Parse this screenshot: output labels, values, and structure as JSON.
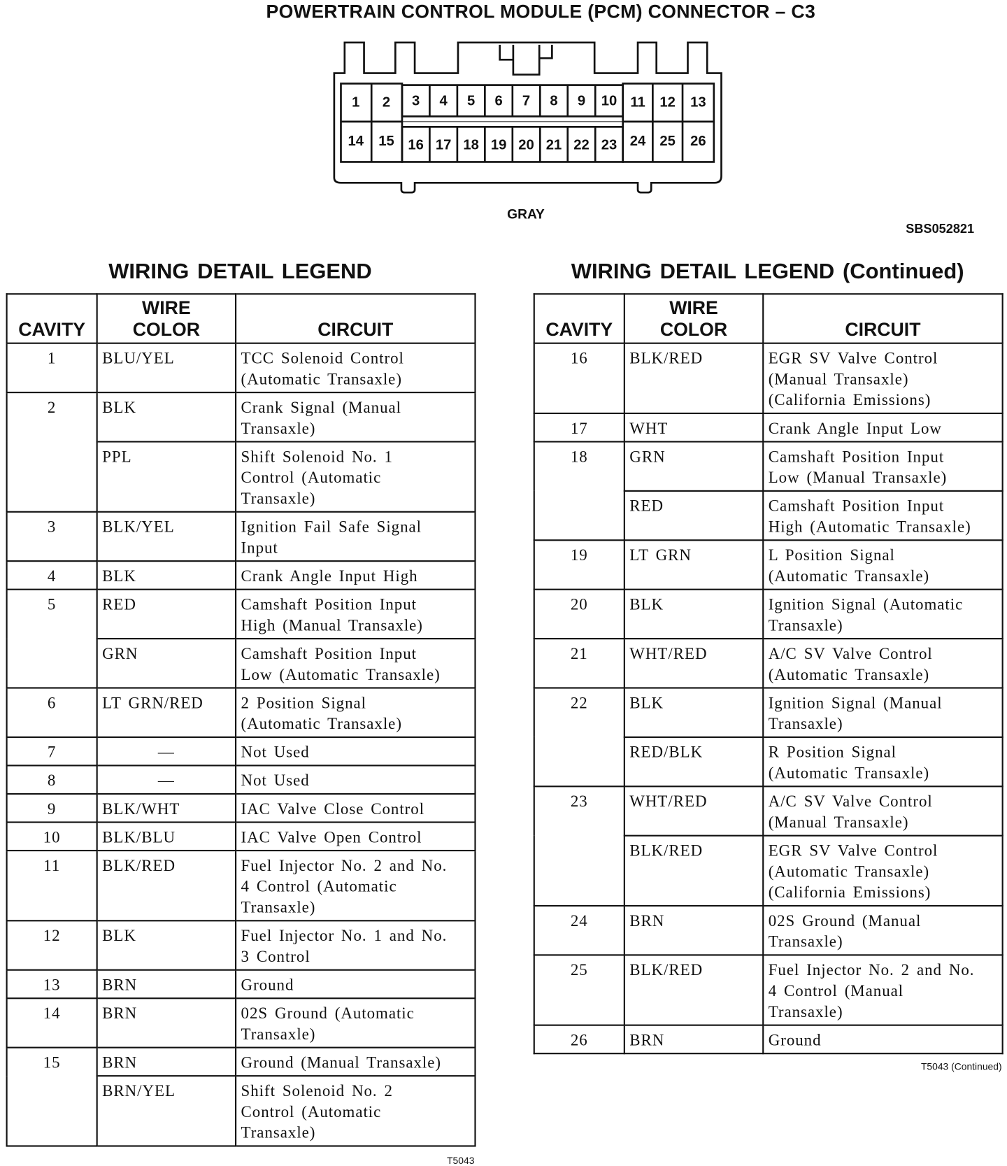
{
  "title": "POWERTRAIN CONTROL MODULE (PCM) CONNECTOR – C3",
  "connector": {
    "color_label": "GRAY",
    "figure_id": "SBS052821",
    "cavities": [
      "1",
      "2",
      "3",
      "4",
      "5",
      "6",
      "7",
      "8",
      "9",
      "10",
      "11",
      "12",
      "13",
      "14",
      "15",
      "16",
      "17",
      "18",
      "19",
      "20",
      "21",
      "22",
      "23",
      "24",
      "25",
      "26"
    ]
  },
  "headers": {
    "cavity": "CAVITY",
    "wire_color": "WIRE\nCOLOR",
    "circuit": "CIRCUIT"
  },
  "left_table": {
    "title": "WIRING DETAIL LEGEND",
    "footnote": "T5043",
    "rows": [
      {
        "cavity": "1",
        "entries": [
          {
            "color": "BLU/YEL",
            "circuit": "TCC Solenoid Control\n(Automatic Transaxle)"
          }
        ]
      },
      {
        "cavity": "2",
        "entries": [
          {
            "color": "BLK",
            "circuit": "Crank Signal (Manual\nTransaxle)"
          },
          {
            "color": "PPL",
            "circuit": "Shift Solenoid No. 1\nControl (Automatic\nTransaxle)"
          }
        ]
      },
      {
        "cavity": "3",
        "entries": [
          {
            "color": "BLK/YEL",
            "circuit": "Ignition Fail Safe Signal\nInput"
          }
        ]
      },
      {
        "cavity": "4",
        "entries": [
          {
            "color": "BLK",
            "circuit": "Crank Angle Input High"
          }
        ]
      },
      {
        "cavity": "5",
        "entries": [
          {
            "color": "RED",
            "circuit": "Camshaft Position Input\nHigh (Manual Transaxle)"
          },
          {
            "color": "GRN",
            "circuit": "Camshaft Position Input\nLow (Automatic Transaxle)"
          }
        ]
      },
      {
        "cavity": "6",
        "entries": [
          {
            "color": "LT GRN/RED",
            "circuit": "2 Position Signal\n(Automatic Transaxle)"
          }
        ]
      },
      {
        "cavity": "7",
        "entries": [
          {
            "color": "—",
            "circuit": "Not Used"
          }
        ]
      },
      {
        "cavity": "8",
        "entries": [
          {
            "color": "—",
            "circuit": "Not Used"
          }
        ]
      },
      {
        "cavity": "9",
        "entries": [
          {
            "color": "BLK/WHT",
            "circuit": "IAC Valve Close Control"
          }
        ]
      },
      {
        "cavity": "10",
        "entries": [
          {
            "color": "BLK/BLU",
            "circuit": "IAC Valve Open Control"
          }
        ]
      },
      {
        "cavity": "11",
        "entries": [
          {
            "color": "BLK/RED",
            "circuit": "Fuel Injector No. 2 and No.\n4 Control (Automatic\nTransaxle)"
          }
        ]
      },
      {
        "cavity": "12",
        "entries": [
          {
            "color": "BLK",
            "circuit": "Fuel Injector No. 1 and No.\n3 Control"
          }
        ]
      },
      {
        "cavity": "13",
        "entries": [
          {
            "color": "BRN",
            "circuit": "Ground"
          }
        ]
      },
      {
        "cavity": "14",
        "entries": [
          {
            "color": "BRN",
            "circuit": "02S Ground (Automatic\nTransaxle)"
          }
        ]
      },
      {
        "cavity": "15",
        "entries": [
          {
            "color": "BRN",
            "circuit": "Ground (Manual Transaxle)"
          },
          {
            "color": "BRN/YEL",
            "circuit": "Shift Solenoid No. 2\nControl (Automatic\nTransaxle)"
          }
        ]
      }
    ]
  },
  "right_table": {
    "title": "WIRING DETAIL LEGEND (Continued)",
    "footnote": "T5043 (Continued)",
    "rows": [
      {
        "cavity": "16",
        "entries": [
          {
            "color": "BLK/RED",
            "circuit": "EGR SV Valve Control\n(Manual Transaxle)\n(California Emissions)"
          }
        ]
      },
      {
        "cavity": "17",
        "entries": [
          {
            "color": "WHT",
            "circuit": "Crank Angle Input Low"
          }
        ]
      },
      {
        "cavity": "18",
        "entries": [
          {
            "color": "GRN",
            "circuit": "Camshaft Position Input\nLow (Manual Transaxle)"
          },
          {
            "color": "RED",
            "circuit": "Camshaft Position Input\nHigh (Automatic Transaxle)"
          }
        ]
      },
      {
        "cavity": "19",
        "entries": [
          {
            "color": "LT GRN",
            "circuit": "L Position Signal\n(Automatic Transaxle)"
          }
        ]
      },
      {
        "cavity": "20",
        "entries": [
          {
            "color": "BLK",
            "circuit": "Ignition Signal (Automatic\nTransaxle)"
          }
        ]
      },
      {
        "cavity": "21",
        "entries": [
          {
            "color": "WHT/RED",
            "circuit": "A/C SV Valve Control\n(Automatic Transaxle)"
          }
        ]
      },
      {
        "cavity": "22",
        "entries": [
          {
            "color": "BLK",
            "circuit": "Ignition Signal (Manual\nTransaxle)"
          },
          {
            "color": "RED/BLK",
            "circuit": "R Position Signal\n(Automatic Transaxle)"
          }
        ]
      },
      {
        "cavity": "23",
        "entries": [
          {
            "color": "WHT/RED",
            "circuit": "A/C SV Valve Control\n(Manual Transaxle)"
          },
          {
            "color": "BLK/RED",
            "circuit": "EGR SV Valve Control\n(Automatic Transaxle)\n(California Emissions)"
          }
        ]
      },
      {
        "cavity": "24",
        "entries": [
          {
            "color": "BRN",
            "circuit": "02S Ground (Manual\nTransaxle)"
          }
        ]
      },
      {
        "cavity": "25",
        "entries": [
          {
            "color": "BLK/RED",
            "circuit": "Fuel Injector No. 2 and No.\n4 Control (Manual\nTransaxle)"
          }
        ]
      },
      {
        "cavity": "26",
        "entries": [
          {
            "color": "BRN",
            "circuit": "Ground"
          }
        ]
      }
    ]
  }
}
